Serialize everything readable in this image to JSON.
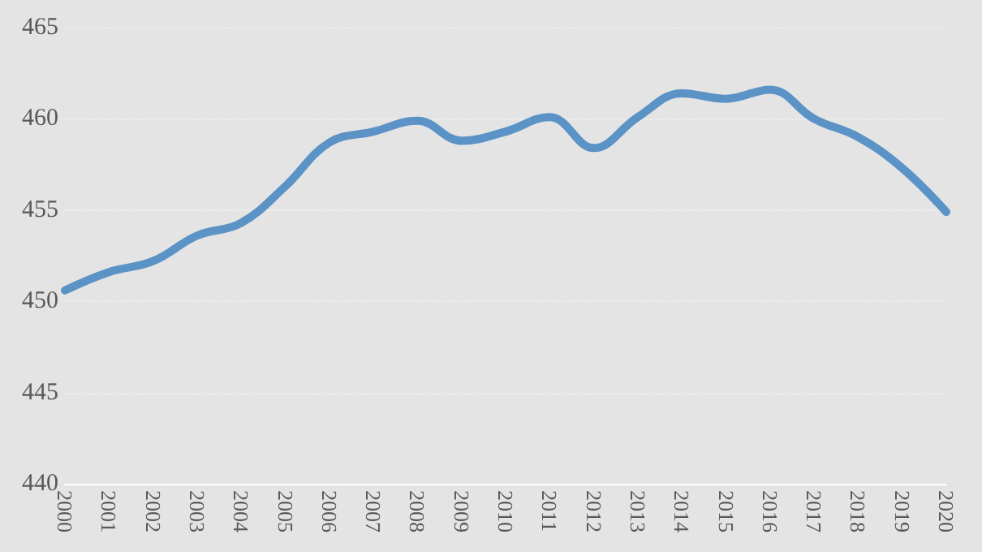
{
  "chart_data": {
    "type": "line",
    "categories": [
      "2000",
      "2001",
      "2002",
      "2003",
      "2004",
      "2005",
      "2006",
      "2007",
      "2008",
      "2009",
      "2010",
      "2011",
      "2012",
      "2013",
      "2014",
      "2015",
      "2016",
      "2017",
      "2018",
      "2019",
      "2020"
    ],
    "series": [
      {
        "color": "#5b93c7",
        "values": [
          450.6,
          451.6,
          452.2,
          453.6,
          454.3,
          456.3,
          458.7,
          459.3,
          459.9,
          458.8,
          459.3,
          460.1,
          458.4,
          460.1,
          461.4,
          461.1,
          461.6,
          460.0,
          459.0,
          457.3,
          454.9
        ]
      }
    ],
    "ylim": [
      440,
      465
    ],
    "yticks": [
      440,
      445,
      450,
      455,
      460,
      465
    ],
    "grid": "y",
    "marker": "none",
    "line_style": "solid"
  }
}
